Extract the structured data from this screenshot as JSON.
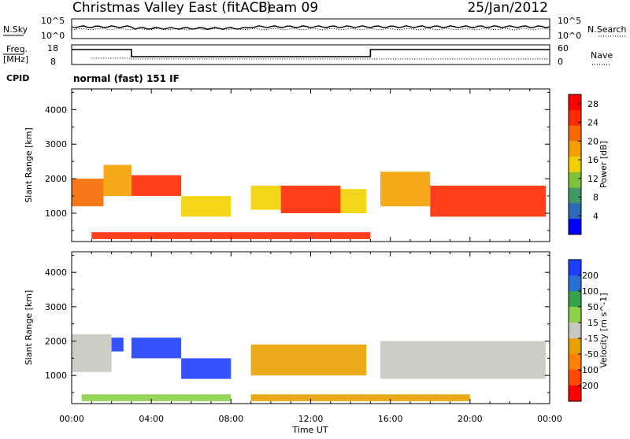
{
  "header": {
    "site": "Christmas Valley East (fitACF)",
    "beam": "Beam 09",
    "date": "25/Jan/2012"
  },
  "top_panels": {
    "nsky_label": "N.Sky",
    "nsky_ticks": [
      "10^5",
      "10^0"
    ],
    "nsearch_label": "N.Search",
    "nsearch_ticks": [
      "10^5",
      "10^0"
    ],
    "freq_label_1": "Freq.",
    "freq_label_2": "[MHz]",
    "freq_ticks": [
      "18",
      "8"
    ],
    "nave_label": "Nave",
    "nave_ticks": [
      "60",
      "0"
    ],
    "cpid_label": "CPID",
    "cpid_text": "normal (fast) 151 IF"
  },
  "colors": {
    "power": [
      "#0000ff",
      "#2d6ab8",
      "#3f9a66",
      "#7ec23c",
      "#f2d000",
      "#f5a000",
      "#f56a00",
      "#ff2a00",
      "#ff0000"
    ],
    "velocity": [
      "#1f3fff",
      "#2a6fd6",
      "#36a24a",
      "#8cd04a",
      "#c8c8c0",
      "#e8a000",
      "#ff8000",
      "#ff4a00",
      "#ff0000"
    ],
    "ground_scatter": "#c8c8c0"
  },
  "chart_data": [
    {
      "type": "heatmap",
      "title": "",
      "xlabel": "",
      "ylabel": "Slant Range [km]",
      "x_ticks": [
        "00:00",
        "04:00",
        "08:00",
        "12:00",
        "16:00",
        "20:00",
        "00:00"
      ],
      "x_range_hours": [
        0,
        24
      ],
      "ylim_km": [
        180,
        4600
      ],
      "y_ticks": [
        1000,
        2000,
        3000,
        4000
      ],
      "colorbar": {
        "label": "Power [dB]",
        "ticks": [
          4,
          8,
          12,
          16,
          20,
          24,
          28
        ],
        "range": [
          0,
          30
        ]
      },
      "echo_regions": [
        {
          "t0": 0.0,
          "t1": 1.6,
          "r0": 1200,
          "r1": 2000,
          "value": 22
        },
        {
          "t0": 1.6,
          "t1": 3.0,
          "r0": 1500,
          "r1": 2400,
          "value": 18
        },
        {
          "t0": 3.0,
          "t1": 5.5,
          "r0": 1500,
          "r1": 2100,
          "value": 24
        },
        {
          "t0": 5.5,
          "t1": 8.0,
          "r0": 900,
          "r1": 1500,
          "value": 16
        },
        {
          "t0": 9.0,
          "t1": 10.5,
          "r0": 1100,
          "r1": 1800,
          "value": 14
        },
        {
          "t0": 10.5,
          "t1": 13.5,
          "r0": 1000,
          "r1": 1800,
          "value": 26
        },
        {
          "t0": 13.5,
          "t1": 14.8,
          "r0": 1000,
          "r1": 1700,
          "value": 14
        },
        {
          "t0": 15.5,
          "t1": 18.0,
          "r0": 1200,
          "r1": 2200,
          "value": 18
        },
        {
          "t0": 18.0,
          "t1": 23.8,
          "r0": 900,
          "r1": 1800,
          "value": 24
        },
        {
          "t0": 1.0,
          "t1": 15.0,
          "r0": 250,
          "r1": 450,
          "value": 26
        }
      ]
    },
    {
      "type": "heatmap",
      "title": "",
      "xlabel": "Time UT",
      "ylabel": "Slant Range [km]",
      "x_ticks": [
        "00:00",
        "04:00",
        "08:00",
        "12:00",
        "16:00",
        "20:00",
        "00:00"
      ],
      "x_range_hours": [
        0,
        24
      ],
      "ylim_km": [
        180,
        4600
      ],
      "y_ticks": [
        1000,
        2000,
        3000,
        4000
      ],
      "colorbar": {
        "label": "Velocity [m s^-1]",
        "ticks": [
          200,
          100,
          50,
          15,
          -15,
          -50,
          -100,
          -200
        ],
        "range": [
          -250,
          250
        ]
      },
      "echo_regions": [
        {
          "t0": 0.0,
          "t1": 2.0,
          "r0": 1100,
          "r1": 2200,
          "value": 0,
          "ground_scatter": true
        },
        {
          "t0": 2.0,
          "t1": 2.6,
          "r0": 1700,
          "r1": 2100,
          "value": 200
        },
        {
          "t0": 3.0,
          "t1": 5.5,
          "r0": 1500,
          "r1": 2100,
          "value": 200
        },
        {
          "t0": 5.5,
          "t1": 8.0,
          "r0": 900,
          "r1": 1500,
          "value": 200
        },
        {
          "t0": 9.0,
          "t1": 14.8,
          "r0": 1000,
          "r1": 1900,
          "value": -60
        },
        {
          "t0": 15.5,
          "t1": 23.8,
          "r0": 900,
          "r1": 2000,
          "value": 0,
          "ground_scatter": true
        },
        {
          "t0": 0.5,
          "t1": 8.0,
          "r0": 250,
          "r1": 450,
          "value": 30
        },
        {
          "t0": 9.0,
          "t1": 20.0,
          "r0": 250,
          "r1": 450,
          "value": -40
        }
      ]
    }
  ]
}
